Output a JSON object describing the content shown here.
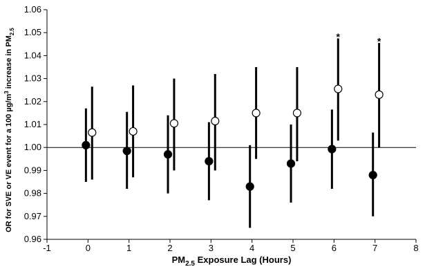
{
  "chart_data": {
    "type": "scatter",
    "title": "",
    "xlabel": "PM",
    "xlabel_sub": "2.5",
    "xlabel_rest": " Exposure Lag (Hours)",
    "ylabel": "OR for SVE or VE event for a 100 µg/m",
    "ylabel_sup": "3",
    "ylabel_mid": " increase in PM",
    "ylabel_sub": "2.5",
    "xlim": [
      -1,
      8
    ],
    "ylim": [
      0.96,
      1.06
    ],
    "x_ticks": [
      -1,
      0,
      1,
      2,
      3,
      4,
      5,
      6,
      7,
      8
    ],
    "x_tick_labels": [
      "-1",
      "0",
      "1",
      "2",
      "3",
      "4",
      "5",
      "6",
      "7",
      "8"
    ],
    "y_ticks": [
      0.96,
      0.97,
      0.98,
      0.99,
      1.0,
      1.01,
      1.02,
      1.03,
      1.04,
      1.05,
      1.06
    ],
    "y_tick_labels": [
      "0.96",
      "0.97",
      "0.98",
      "0.99",
      "1.00",
      "1.01",
      "1.02",
      "1.03",
      "1.04",
      "1.05",
      "1.06"
    ],
    "reference_line": 1.0,
    "grid": false,
    "series": [
      {
        "marker": "filled-circle",
        "color": "#000000",
        "x": [
          -0.05,
          0.95,
          1.95,
          2.95,
          3.95,
          4.95,
          5.95,
          6.95
        ],
        "y": [
          1.001,
          0.9985,
          0.997,
          0.994,
          0.983,
          0.993,
          0.9993,
          0.988
        ],
        "lower": [
          0.985,
          0.982,
          0.98,
          0.977,
          0.965,
          0.976,
          0.982,
          0.97
        ],
        "upper": [
          1.017,
          1.0155,
          1.014,
          1.011,
          1.001,
          1.01,
          1.0165,
          1.0065
        ]
      },
      {
        "marker": "open-circle",
        "color": "#000000",
        "x": [
          0.1,
          1.1,
          2.1,
          3.1,
          4.1,
          5.1,
          6.1,
          7.1
        ],
        "y": [
          1.0065,
          1.007,
          1.0105,
          1.0115,
          1.015,
          1.015,
          1.0255,
          1.023
        ],
        "lower": [
          0.986,
          0.987,
          0.99,
          0.99,
          0.995,
          0.994,
          1.003,
          1.0
        ],
        "upper": [
          1.0265,
          1.027,
          1.03,
          1.032,
          1.035,
          1.035,
          1.0475,
          1.0455
        ]
      }
    ],
    "annotations": [
      {
        "text": "*",
        "x": 6.1,
        "y": 1.0495
      },
      {
        "text": "*",
        "x": 7.1,
        "y": 1.0475
      }
    ]
  }
}
